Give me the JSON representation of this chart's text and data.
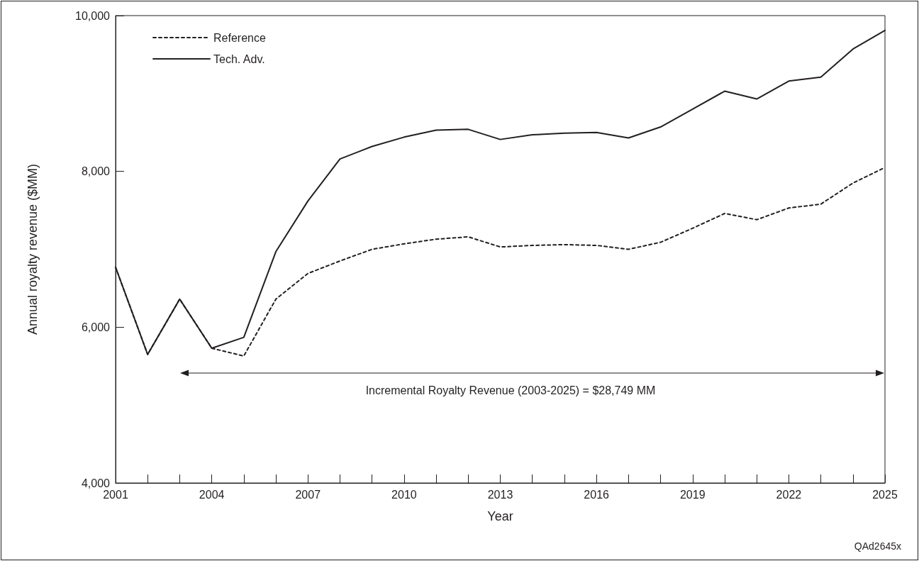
{
  "chart_data": {
    "type": "line",
    "xlabel": "Year",
    "ylabel": "Annual royalty revenue ($MM)",
    "x": [
      2001,
      2002,
      2003,
      2004,
      2005,
      2006,
      2007,
      2008,
      2009,
      2010,
      2011,
      2012,
      2013,
      2014,
      2015,
      2016,
      2017,
      2018,
      2019,
      2020,
      2021,
      2022,
      2023,
      2024,
      2025
    ],
    "series": [
      {
        "name": "Reference",
        "color": "#231f20",
        "line_style": "dashed",
        "values": [
          6770,
          5650,
          6360,
          5730,
          5630,
          6360,
          6690,
          6850,
          7000,
          7070,
          7130,
          7160,
          7030,
          7050,
          7060,
          7050,
          7000,
          7090,
          7270,
          7460,
          7380,
          7530,
          7580,
          7850,
          8050
        ]
      },
      {
        "name": "Tech. Adv.",
        "color": "#231f20",
        "line_style": "solid",
        "values": [
          6770,
          5650,
          6360,
          5730,
          5870,
          6970,
          7620,
          8160,
          8320,
          8440,
          8530,
          8540,
          8410,
          8470,
          8490,
          8500,
          8430,
          8570,
          8800,
          9030,
          8930,
          9160,
          9210,
          9570,
          9810
        ]
      }
    ],
    "xlim": [
      2001,
      2025
    ],
    "xticks": [
      2001,
      {
        "value": 2002,
        "label": null
      },
      {
        "value": 2003,
        "label": null
      },
      2004,
      {
        "value": 2005,
        "label": null
      },
      {
        "value": 2006,
        "label": null
      },
      2007,
      {
        "value": 2008,
        "label": null
      },
      {
        "value": 2009,
        "label": null
      },
      2010,
      {
        "value": 2011,
        "label": null
      },
      {
        "value": 2012,
        "label": null
      },
      2013,
      {
        "value": 2014,
        "label": null
      },
      {
        "value": 2015,
        "label": null
      },
      2016,
      {
        "value": 2017,
        "label": null
      },
      {
        "value": 2018,
        "label": null
      },
      2019,
      {
        "value": 2020,
        "label": null
      },
      {
        "value": 2021,
        "label": null
      },
      2022,
      {
        "value": 2023,
        "label": null
      },
      {
        "value": 2024,
        "label": null
      },
      2025
    ],
    "ylim": [
      4000,
      10000
    ],
    "yticks": [
      {
        "value": 4000,
        "label": "4,000"
      },
      {
        "value": 6000,
        "label": "6,000"
      },
      {
        "value": 8000,
        "label": "8,000"
      },
      {
        "value": 10000,
        "label": "10,000"
      }
    ],
    "annotations": [
      "Incremental Royalty Revenue (2003-2025) = $28,749 MM",
      "QAd2645x"
    ],
    "legend": "top left",
    "grid": false,
    "marker": "none"
  }
}
